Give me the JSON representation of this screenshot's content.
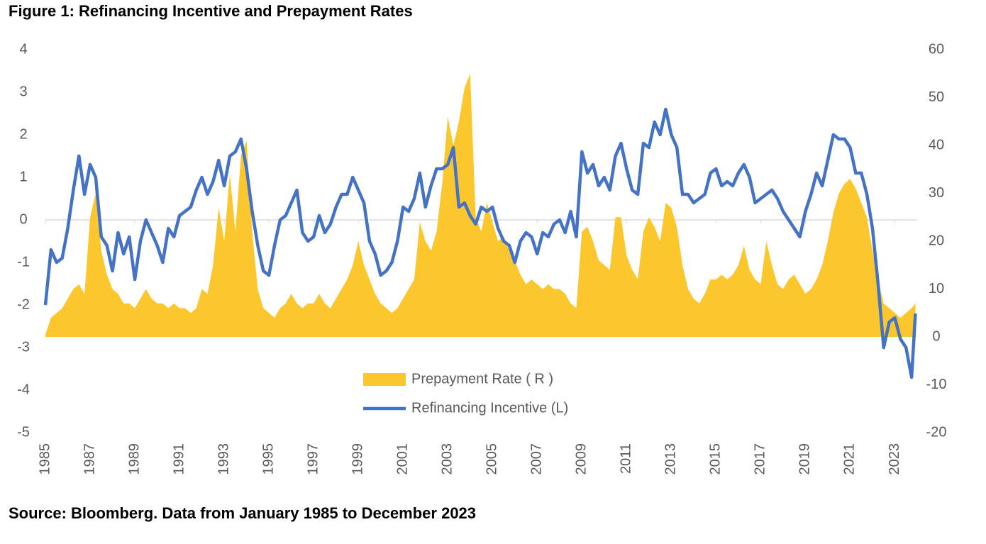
{
  "chart_data": {
    "type": "area-line",
    "title": "Figure 1: Refinancing Incentive and Prepayment Rates",
    "source": "Source: Bloomberg. Data from January 1985 to December 2023",
    "xlim": [
      1985,
      2024
    ],
    "xticks": [
      1985,
      1987,
      1989,
      1991,
      1993,
      1995,
      1997,
      1999,
      2001,
      2003,
      2005,
      2007,
      2009,
      2011,
      2013,
      2015,
      2017,
      2019,
      2021,
      2023
    ],
    "ylim": [
      -5,
      4
    ],
    "yticks": [
      -5,
      -4,
      -3,
      -2,
      -1,
      0,
      1,
      2,
      3,
      4
    ],
    "y2lim": [
      -20,
      60
    ],
    "y2ticks": [
      -20,
      -10,
      0,
      10,
      20,
      30,
      40,
      50,
      60
    ],
    "x": [
      1985,
      1985.25,
      1985.5,
      1985.75,
      1986,
      1986.25,
      1986.5,
      1986.75,
      1987,
      1987.25,
      1987.5,
      1987.75,
      1988,
      1988.25,
      1988.5,
      1988.75,
      1989,
      1989.25,
      1989.5,
      1989.75,
      1990,
      1990.25,
      1990.5,
      1990.75,
      1991,
      1991.25,
      1991.5,
      1991.75,
      1992,
      1992.25,
      1992.5,
      1992.75,
      1993,
      1993.25,
      1993.5,
      1993.75,
      1994,
      1994.25,
      1994.5,
      1994.75,
      1995,
      1995.25,
      1995.5,
      1995.75,
      1996,
      1996.25,
      1996.5,
      1996.75,
      1997,
      1997.25,
      1997.5,
      1997.75,
      1998,
      1998.25,
      1998.5,
      1998.75,
      1999,
      1999.25,
      1999.5,
      1999.75,
      2000,
      2000.25,
      2000.5,
      2000.75,
      2001,
      2001.25,
      2001.5,
      2001.75,
      2002,
      2002.25,
      2002.5,
      2002.75,
      2003,
      2003.25,
      2003.5,
      2003.75,
      2004,
      2004.25,
      2004.5,
      2004.75,
      2005,
      2005.25,
      2005.5,
      2005.75,
      2006,
      2006.25,
      2006.5,
      2006.75,
      2007,
      2007.25,
      2007.5,
      2007.75,
      2008,
      2008.25,
      2008.5,
      2008.75,
      2009,
      2009.25,
      2009.5,
      2009.75,
      2010,
      2010.25,
      2010.5,
      2010.75,
      2011,
      2011.25,
      2011.5,
      2011.75,
      2012,
      2012.25,
      2012.5,
      2012.75,
      2013,
      2013.25,
      2013.5,
      2013.75,
      2014,
      2014.25,
      2014.5,
      2014.75,
      2015,
      2015.25,
      2015.5,
      2015.75,
      2016,
      2016.25,
      2016.5,
      2016.75,
      2017,
      2017.25,
      2017.5,
      2017.75,
      2018,
      2018.25,
      2018.5,
      2018.75,
      2019,
      2019.25,
      2019.5,
      2019.75,
      2020,
      2020.25,
      2020.5,
      2020.75,
      2021,
      2021.25,
      2021.5,
      2021.75,
      2022,
      2022.25,
      2022.5,
      2022.75,
      2023,
      2023.25,
      2023.5,
      2023.75,
      2023.92
    ],
    "series": [
      {
        "name": "Prepayment Rate ( R )",
        "color": "#FCC72C",
        "axis": "y2",
        "values": [
          0.5,
          4,
          5,
          6,
          8,
          10,
          11,
          9,
          25,
          30,
          18,
          13,
          10,
          9,
          7,
          7,
          6,
          8,
          10,
          8,
          7,
          7,
          6,
          7,
          6,
          6,
          5,
          6,
          10,
          9,
          15,
          27,
          20,
          34,
          22,
          38,
          41,
          22,
          10,
          6,
          5,
          4,
          6,
          7,
          9,
          7,
          6,
          7,
          7,
          9,
          7,
          6,
          8,
          10,
          12,
          15,
          20,
          15,
          12,
          9,
          7,
          6,
          5,
          6,
          8,
          10,
          12,
          24,
          20,
          18,
          22,
          32,
          46,
          40,
          45,
          52,
          55,
          25,
          22,
          28,
          24,
          20,
          21,
          18,
          16,
          13,
          11,
          12,
          11,
          10,
          11,
          10,
          10,
          9,
          7,
          6,
          22,
          23,
          20,
          16,
          15,
          14,
          25,
          25,
          17,
          14,
          12,
          22,
          25,
          23,
          20,
          28,
          27,
          23,
          15,
          10,
          8,
          7,
          9,
          12,
          12,
          13,
          12,
          13,
          15,
          19,
          14,
          12,
          11,
          20,
          15,
          11,
          10,
          12,
          13,
          11,
          9,
          10,
          12,
          15,
          20,
          26,
          30,
          32,
          33,
          31,
          28,
          25,
          18,
          12,
          7,
          6,
          5,
          4,
          5,
          6,
          7
        ]
      },
      {
        "name": "Refinancing Incentive (L)",
        "color": "#4472C4",
        "axis": "y",
        "values": [
          -2.0,
          -0.7,
          -1.0,
          -0.9,
          -0.2,
          0.7,
          1.5,
          0.6,
          1.3,
          1.0,
          -0.4,
          -0.6,
          -1.2,
          -0.3,
          -0.8,
          -0.4,
          -1.4,
          -0.5,
          0.0,
          -0.3,
          -0.6,
          -1.0,
          -0.2,
          -0.4,
          0.1,
          0.2,
          0.3,
          0.7,
          1.0,
          0.6,
          0.9,
          1.4,
          0.8,
          1.5,
          1.6,
          1.9,
          1.2,
          0.2,
          -0.6,
          -1.2,
          -1.3,
          -0.6,
          0.0,
          0.1,
          0.4,
          0.7,
          -0.3,
          -0.5,
          -0.4,
          0.1,
          -0.3,
          -0.1,
          0.3,
          0.6,
          0.6,
          1.0,
          0.7,
          0.4,
          -0.5,
          -0.8,
          -1.3,
          -1.2,
          -1.0,
          -0.5,
          0.3,
          0.2,
          0.5,
          1.1,
          0.3,
          0.8,
          1.2,
          1.2,
          1.3,
          1.7,
          0.3,
          0.4,
          0.1,
          -0.1,
          0.3,
          0.2,
          0.3,
          -0.2,
          -0.5,
          -0.6,
          -1.0,
          -0.5,
          -0.3,
          -0.4,
          -0.8,
          -0.3,
          -0.4,
          -0.1,
          0.0,
          -0.3,
          0.2,
          -0.4,
          1.6,
          1.1,
          1.3,
          0.8,
          1.0,
          0.7,
          1.5,
          1.8,
          1.2,
          0.7,
          0.6,
          1.8,
          1.7,
          2.3,
          2.0,
          2.6,
          2.0,
          1.7,
          0.6,
          0.6,
          0.4,
          0.5,
          0.6,
          1.1,
          1.2,
          0.8,
          0.9,
          0.8,
          1.1,
          1.3,
          1.0,
          0.4,
          0.5,
          0.6,
          0.7,
          0.5,
          0.2,
          0.0,
          -0.2,
          -0.4,
          0.2,
          0.6,
          1.1,
          0.8,
          1.4,
          2.0,
          1.9,
          1.9,
          1.7,
          1.1,
          1.1,
          0.6,
          -0.2,
          -1.5,
          -3.0,
          -2.4,
          -2.3,
          -2.8,
          -3.0,
          -3.7,
          -2.2
        ]
      }
    ]
  }
}
